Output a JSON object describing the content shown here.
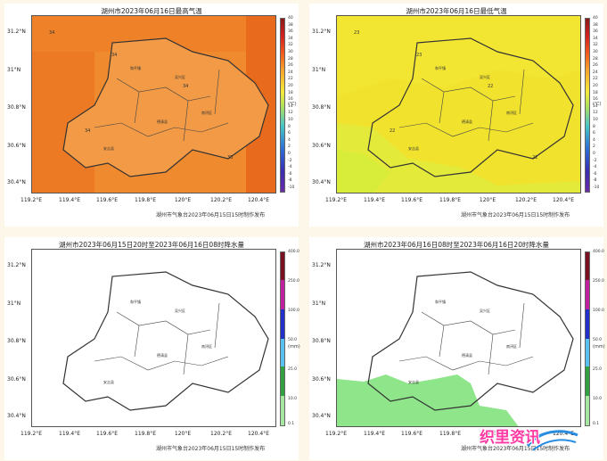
{
  "panels": [
    {
      "title": "湖州市2023年06月16日最高气温",
      "credit": "湖州市气象台2023年06月15日15时制作发布",
      "lat_labels": [
        "31.2°N",
        "31°N",
        "30.8°N",
        "30.6°N",
        "30.4°N"
      ],
      "lon_labels": [
        "119.2°E",
        "119.4°E",
        "119.6°E",
        "119.8°E",
        "120°E",
        "120.2°E",
        "120.4°E"
      ],
      "scale_labels": [
        "40",
        "38",
        "36",
        "34",
        "32",
        "30",
        "28",
        "26",
        "24",
        "22",
        "20",
        "18",
        "16",
        "14",
        "12",
        "10",
        "8",
        "6",
        "4",
        "2",
        "0",
        "-2",
        "-4",
        "-6",
        "-8",
        "-10"
      ],
      "unit": "(℃)"
    },
    {
      "title": "湖州市2023年06月16日最低气温",
      "credit": "湖州市气象台2023年06月15日15时制作发布",
      "lat_labels": [
        "31.2°N",
        "31°N",
        "30.8°N",
        "30.6°N",
        "30.4°N"
      ],
      "lon_labels": [
        "119.2°E",
        "119.4°E",
        "119.6°E",
        "119.8°E",
        "120°E",
        "120.2°E",
        "120.4°E"
      ],
      "scale_labels": [
        "40",
        "38",
        "36",
        "34",
        "32",
        "30",
        "28",
        "26",
        "24",
        "22",
        "20",
        "18",
        "16",
        "14",
        "12",
        "10",
        "8",
        "6",
        "4",
        "2",
        "0",
        "-2",
        "-4",
        "-6",
        "-8",
        "-10"
      ],
      "unit": "(℃)"
    },
    {
      "title": "湖州市2023年06月15日20时至2023年06月16日08时降水量",
      "credit": "湖州市气象台2023年06月15日15时制作发布",
      "lat_labels": [
        "31.2°N",
        "31°N",
        "30.8°N",
        "30.6°N",
        "30.4°N"
      ],
      "lon_labels": [
        "119.2°E",
        "119.4°E",
        "119.6°E",
        "119.8°E",
        "120°E",
        "120.2°E",
        "120.4°E"
      ],
      "scale_labels": [
        "400.0",
        "250.0",
        "100.0",
        "50.0",
        "25.0",
        "10.0",
        "0.1"
      ],
      "unit": "(mm)"
    },
    {
      "title": "湖州市2023年06月16日08时至2023年06月16日20时降水量",
      "credit": "湖州市气象台2023年06月15日15时制作发布",
      "lat_labels": [
        "31.2°N",
        "31°N",
        "30.8°N",
        "30.6°N",
        "30.4°N"
      ],
      "lon_labels": [
        "119.2°E",
        "119.4°E",
        "119.6°E",
        "119.8°E",
        "120°E",
        "120.2°E",
        "120.4°E"
      ],
      "scale_labels": [
        "400.0",
        "250.0",
        "100.0",
        "50.0",
        "25.0",
        "10.0",
        "0.1"
      ],
      "unit": "(mm)"
    }
  ],
  "temp_values": {
    "max": [
      "34",
      "34",
      "34",
      "34",
      "33"
    ],
    "min": [
      "23",
      "23",
      "22",
      "22",
      "22"
    ]
  },
  "colors": {
    "max_temp_fill": "#f08a2e",
    "max_temp_dark": "#e86a1c",
    "min_temp_fill": "#f1e22e",
    "min_temp_light": "#d8ec3a",
    "rain_green": "#8ee58a",
    "page_bg": "#fdf7ea"
  },
  "watermark": "织里资讯"
}
